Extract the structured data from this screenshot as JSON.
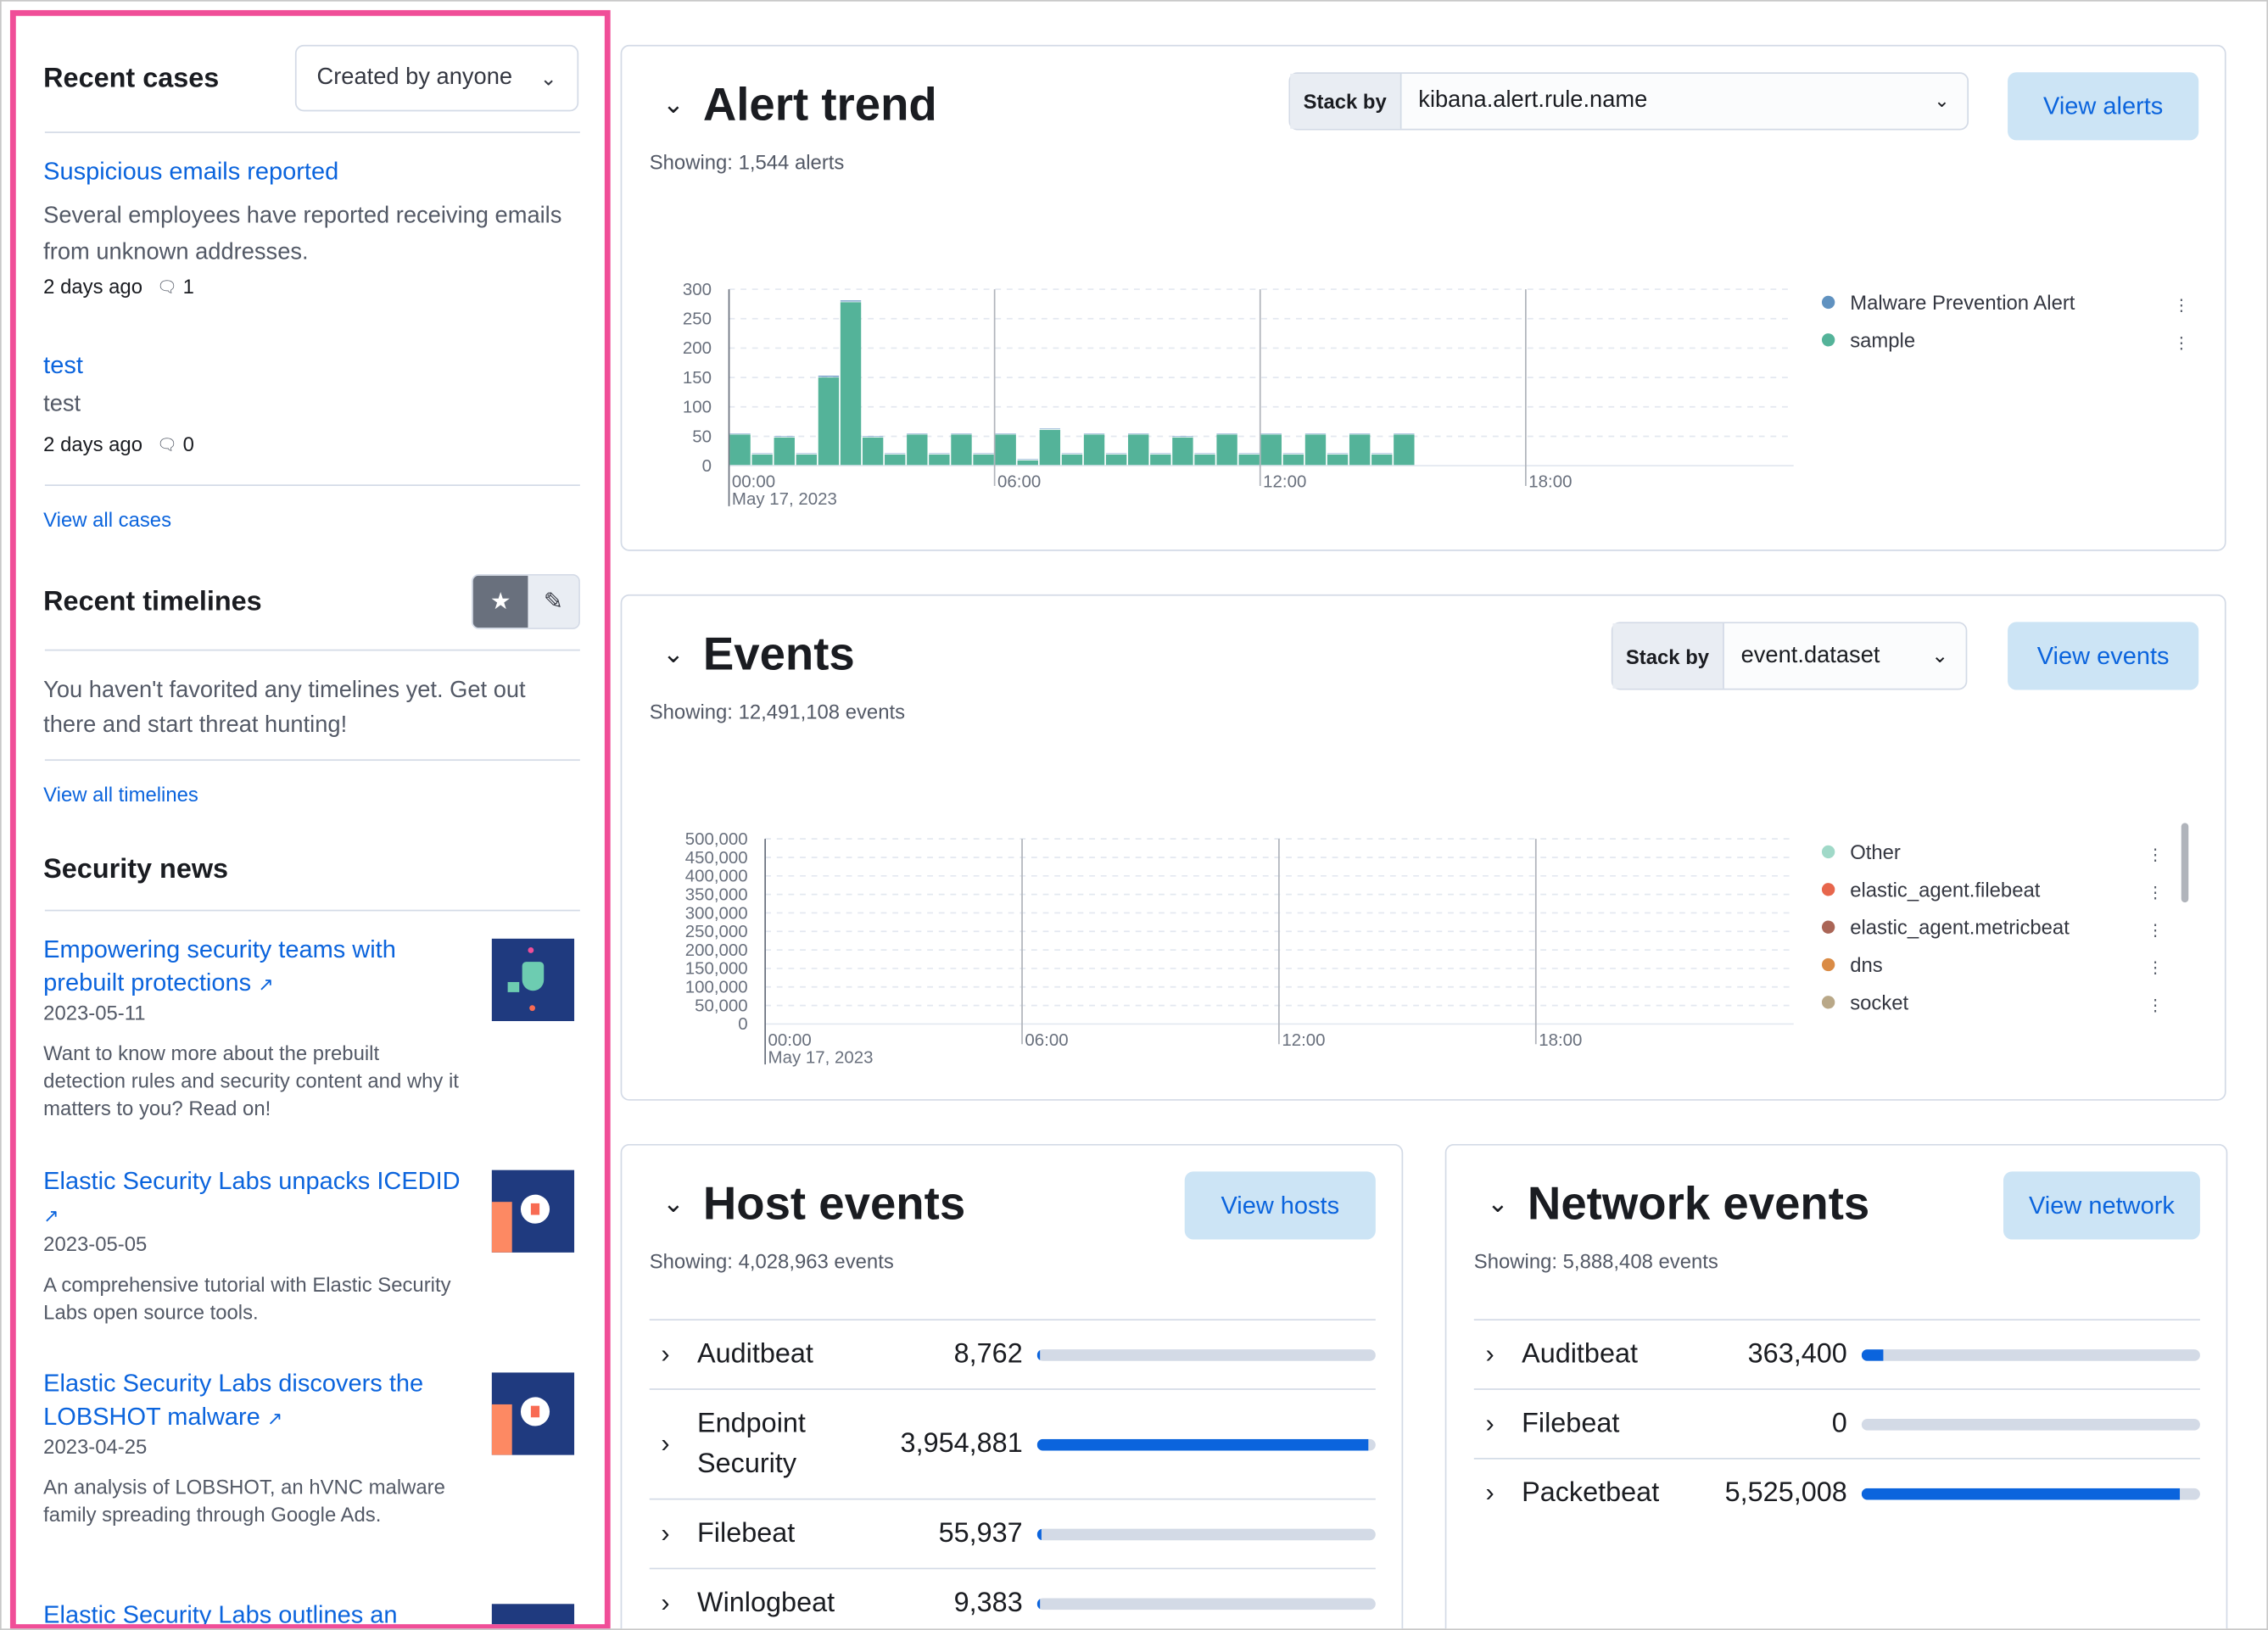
{
  "sidebar": {
    "recent_cases": {
      "title": "Recent cases",
      "filter": "Created by anyone",
      "cases": [
        {
          "title": "Suspicious emails reported",
          "description": "Several employees have reported receiving emails from unknown addresses.",
          "age": "2 days ago",
          "comments": "1"
        },
        {
          "title": "test",
          "description": "test",
          "age": "2 days ago",
          "comments": "0"
        }
      ],
      "view_all": "View all cases"
    },
    "recent_timelines": {
      "title": "Recent timelines",
      "empty": "You haven't favorited any timelines yet. Get out there and start threat hunting!",
      "view_all": "View all timelines"
    },
    "security_news": {
      "title": "Security news",
      "items": [
        {
          "title": "Empowering security teams with prebuilt protections",
          "date": "2023-05-11",
          "summary": "Want to know more about the prebuilt detection rules and security content and why it matters to you? Read on!"
        },
        {
          "title": "Elastic Security Labs unpacks ICEDID",
          "date": "2023-05-05",
          "summary": "A comprehensive tutorial with Elastic Security Labs open source tools."
        },
        {
          "title": "Elastic Security Labs discovers the LOBSHOT malware",
          "date": "2023-04-25",
          "summary": "An analysis of LOBSHOT, an hVNC malware family spreading through Google Ads."
        },
        {
          "title": "Elastic Security Labs outlines an",
          "date": "",
          "summary": ""
        }
      ]
    }
  },
  "alert_trend": {
    "title": "Alert trend",
    "stack_by_label": "Stack by",
    "stack_by_value": "kibana.alert.rule.name",
    "button": "View alerts",
    "showing": "Showing: 1,544 alerts"
  },
  "events": {
    "title": "Events",
    "stack_by_label": "Stack by",
    "stack_by_value": "event.dataset",
    "button": "View events",
    "showing": "Showing: 12,491,108 events"
  },
  "host_events": {
    "title": "Host events",
    "button": "View hosts",
    "showing": "Showing: 4,028,963 events",
    "rows": [
      {
        "name": "Auditbeat",
        "count": "8,762",
        "fraction": 0.002
      },
      {
        "name": "Endpoint Security",
        "count": "3,954,881",
        "fraction": 0.98
      },
      {
        "name": "Filebeat",
        "count": "55,937",
        "fraction": 0.014
      },
      {
        "name": "Winlogbeat",
        "count": "9,383",
        "fraction": 0.002
      }
    ]
  },
  "network_events": {
    "title": "Network events",
    "button": "View network",
    "showing": "Showing: 5,888,408 events",
    "rows": [
      {
        "name": "Auditbeat",
        "count": "363,400",
        "fraction": 0.066
      },
      {
        "name": "Filebeat",
        "count": "0",
        "fraction": 0
      },
      {
        "name": "Packetbeat",
        "count": "5,525,008",
        "fraction": 0.94
      }
    ]
  },
  "chart_data": [
    {
      "type": "bar",
      "stacked": true,
      "ylim": [
        0,
        300
      ],
      "yticks": [
        "0",
        "50",
        "100",
        "150",
        "200",
        "250",
        "300"
      ],
      "xticks": [
        "00:00",
        "06:00",
        "12:00",
        "18:00"
      ],
      "x_date_label": "May 17, 2023",
      "interval_minutes": 30,
      "grid": true,
      "legend_position": "right",
      "series": [
        {
          "name": "sample",
          "color": "#54b399",
          "values": [
            53,
            19,
            48,
            19,
            150,
            278,
            48,
            19,
            53,
            19,
            53,
            19,
            53,
            9,
            61,
            19,
            53,
            19,
            53,
            19,
            48,
            19,
            53,
            19,
            53,
            19,
            53,
            19,
            53,
            19,
            53
          ]
        },
        {
          "name": "Malware Prevention Alert",
          "color": "#6092c0",
          "values": [
            2,
            2,
            2,
            2,
            3,
            3,
            2,
            2,
            2,
            2,
            2,
            2,
            2,
            2,
            2,
            2,
            2,
            2,
            2,
            2,
            2,
            2,
            2,
            2,
            2,
            2,
            2,
            2,
            2,
            2,
            2
          ]
        }
      ]
    },
    {
      "type": "bar",
      "stacked": true,
      "ylim": [
        0,
        500000
      ],
      "yticks": [
        "0",
        "50,000",
        "100,000",
        "150,000",
        "200,000",
        "250,000",
        "300,000",
        "350,000",
        "400,000",
        "450,000",
        "500,000"
      ],
      "xticks": [
        "00:00",
        "06:00",
        "12:00",
        "18:00"
      ],
      "x_date_label": "May 17, 2023",
      "interval_minutes": 30,
      "grid": true,
      "legend_position": "right",
      "series": [
        {
          "color": "#54b399",
          "values": [
            200,
            175,
            195,
            220,
            232,
            235,
            185,
            145,
            140,
            150,
            152,
            145,
            132,
            145,
            152,
            162,
            150,
            147,
            147,
            165,
            190,
            202,
            180,
            180,
            162,
            202,
            157,
            145,
            150,
            145,
            155,
            37
          ]
        },
        {
          "color": "#6092c0",
          "values": [
            90,
            90,
            90,
            90,
            92,
            90,
            90,
            92,
            90,
            90,
            90,
            92,
            90,
            88,
            90,
            92,
            92,
            90,
            92,
            92,
            92,
            90,
            92,
            90,
            92,
            90,
            92,
            92,
            92,
            92,
            92,
            22
          ]
        },
        {
          "color": "#d36086",
          "values": [
            55,
            50,
            52,
            55,
            55,
            52,
            55,
            55,
            55,
            55,
            55,
            55,
            55,
            52,
            52,
            52,
            52,
            55,
            55,
            55,
            52,
            52,
            52,
            52,
            52,
            55,
            52,
            52,
            52,
            52,
            52,
            15
          ]
        },
        {
          "color": "#9170b8",
          "values": [
            18,
            18,
            18,
            18,
            18,
            18,
            18,
            18,
            18,
            18,
            18,
            18,
            18,
            18,
            18,
            18,
            18,
            18,
            18,
            18,
            18,
            18,
            18,
            18,
            18,
            18,
            18,
            18,
            18,
            18,
            18,
            4
          ]
        },
        {
          "color": "#ca8eae",
          "values": [
            20,
            20,
            20,
            20,
            22,
            22,
            20,
            20,
            20,
            20,
            20,
            20,
            20,
            20,
            20,
            20,
            20,
            20,
            20,
            20,
            20,
            20,
            20,
            20,
            20,
            20,
            20,
            20,
            20,
            20,
            20,
            5
          ]
        },
        {
          "color": "#d6bf57",
          "values": [
            17,
            17,
            17,
            17,
            18,
            18,
            17,
            17,
            17,
            17,
            17,
            17,
            17,
            17,
            17,
            17,
            17,
            17,
            17,
            17,
            17,
            17,
            17,
            17,
            17,
            17,
            17,
            17,
            17,
            17,
            17,
            4
          ]
        },
        {
          "name": "socket",
          "color": "#b9a888",
          "values": [
            14,
            14,
            14,
            14,
            15,
            15,
            14,
            14,
            14,
            14,
            14,
            14,
            14,
            14,
            14,
            14,
            14,
            14,
            14,
            14,
            14,
            14,
            14,
            14,
            14,
            14,
            14,
            14,
            14,
            14,
            14,
            3
          ]
        },
        {
          "name": "dns",
          "color": "#da8b45",
          "values": [
            6,
            6,
            6,
            6,
            6,
            6,
            6,
            6,
            6,
            6,
            6,
            6,
            6,
            6,
            6,
            6,
            6,
            6,
            6,
            6,
            6,
            6,
            6,
            6,
            6,
            6,
            6,
            6,
            6,
            6,
            6,
            2
          ]
        },
        {
          "name": "elastic_agent.metricbeat",
          "color": "#aa6556",
          "values": [
            4,
            4,
            4,
            4,
            4,
            4,
            4,
            4,
            4,
            4,
            4,
            4,
            4,
            4,
            4,
            4,
            4,
            4,
            4,
            4,
            4,
            4,
            4,
            4,
            4,
            4,
            4,
            4,
            4,
            4,
            4,
            1
          ]
        },
        {
          "name": "elastic_agent.filebeat",
          "color": "#e7664c",
          "values": [
            4,
            4,
            4,
            4,
            4,
            4,
            4,
            4,
            4,
            4,
            4,
            4,
            4,
            4,
            4,
            4,
            4,
            4,
            4,
            4,
            4,
            4,
            4,
            4,
            4,
            4,
            4,
            4,
            4,
            4,
            4,
            1
          ]
        },
        {
          "name": "Other",
          "color": "#a0d9c8",
          "values": [
            8,
            7,
            8,
            8,
            8,
            8,
            7,
            7,
            7,
            7,
            7,
            7,
            7,
            7,
            7,
            7,
            7,
            7,
            7,
            7,
            7,
            7,
            7,
            7,
            7,
            7,
            7,
            7,
            7,
            7,
            7,
            2
          ]
        }
      ]
    }
  ]
}
